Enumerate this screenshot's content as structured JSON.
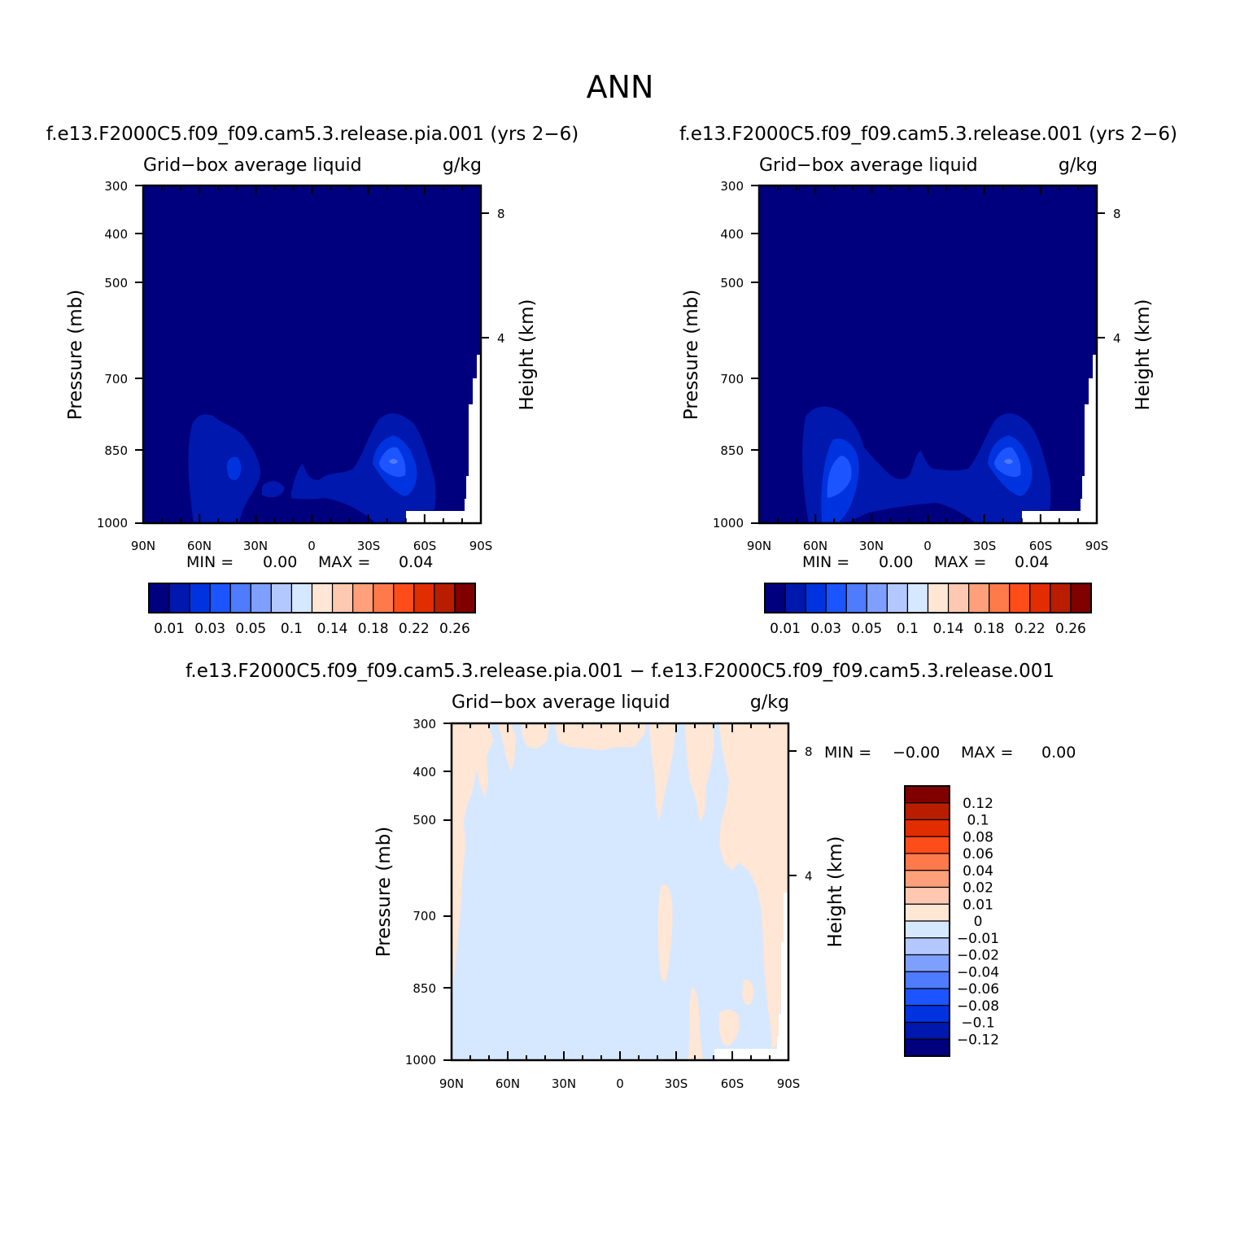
{
  "figure_title": "ANN",
  "chart_data": [
    {
      "type": "heatmap",
      "panel": "case",
      "title": "f.e13.F2000C5.f09_f09.cam5.3.release.pia.001 (yrs 2-6)",
      "field_label": "Grid-box average liquid",
      "units": "g/kg",
      "ylabel": "Pressure (mb)",
      "ylabel_right": "Height (km)",
      "x_ticks": [
        "90N",
        "60N",
        "30N",
        "0",
        "30S",
        "60S",
        "90S"
      ],
      "y_ticks": [
        "300",
        "400",
        "500",
        "700",
        "850",
        "1000"
      ],
      "y_right_ticks": [
        "8",
        "4"
      ],
      "ylim": [
        1000,
        300
      ],
      "min_label": "MIN =",
      "min_value": "0.00",
      "max_label": "MAX =",
      "max_value": "0.04",
      "colorbar_labels": [
        "0.01",
        "0.03",
        "0.05",
        "0.1",
        "0.14",
        "0.18",
        "0.22",
        "0.26"
      ],
      "colorbar_colors": [
        "#00007f",
        "#0018ad",
        "#0033e0",
        "#1c55ff",
        "#4f7bff",
        "#7f9fff",
        "#b3c8ff",
        "#d6e8ff",
        "#ffe6d5",
        "#ffc8b0",
        "#ffa07a",
        "#ff7a4a",
        "#ff4d1a",
        "#e22d00",
        "#b81d00",
        "#800000"
      ],
      "features": [
        {
          "where": "NH midlatitude low levels (~70N-25N, below ~780 mb)",
          "values": [
            0.01,
            0.02
          ]
        },
        {
          "where": "SH midlatitude low levels (~30S-60S, ~770-960 mb)",
          "values": [
            0.01,
            0.02,
            0.03,
            0.04
          ]
        },
        {
          "where": "elsewhere",
          "values": [
            0.0
          ]
        }
      ]
    },
    {
      "type": "heatmap",
      "panel": "control",
      "title": "f.e13.F2000C5.f09_f09.cam5.3.release.001 (yrs 2-6)",
      "field_label": "Grid-box average liquid",
      "units": "g/kg",
      "ylabel": "Pressure (mb)",
      "ylabel_right": "Height (km)",
      "x_ticks": [
        "90N",
        "60N",
        "30N",
        "0",
        "30S",
        "60S",
        "90S"
      ],
      "y_ticks": [
        "300",
        "400",
        "500",
        "700",
        "850",
        "1000"
      ],
      "y_right_ticks": [
        "8",
        "4"
      ],
      "ylim": [
        1000,
        300
      ],
      "min_label": "MIN =",
      "min_value": "0.00",
      "max_label": "MAX =",
      "max_value": "0.04",
      "colorbar_labels": [
        "0.01",
        "0.03",
        "0.05",
        "0.1",
        "0.14",
        "0.18",
        "0.22",
        "0.26"
      ],
      "colorbar_colors": [
        "#00007f",
        "#0018ad",
        "#0033e0",
        "#1c55ff",
        "#4f7bff",
        "#7f9fff",
        "#b3c8ff",
        "#d6e8ff",
        "#ffe6d5",
        "#ffc8b0",
        "#ffa07a",
        "#ff7a4a",
        "#ff4d1a",
        "#e22d00",
        "#b81d00",
        "#800000"
      ],
      "features": [
        {
          "where": "NH midlatitude low levels (~70N-25N, below ~770 mb)",
          "values": [
            0.01,
            0.02,
            0.03
          ]
        },
        {
          "where": "SH midlatitude low levels (~30S-60S, ~770-960 mb)",
          "values": [
            0.01,
            0.02,
            0.03,
            0.04
          ]
        },
        {
          "where": "elsewhere",
          "values": [
            0.0
          ]
        }
      ]
    },
    {
      "type": "heatmap",
      "panel": "difference",
      "title": "f.e13.F2000C5.f09_f09.cam5.3.release.pia.001 - f.e13.F2000C5.f09_f09.cam5.3.release.001",
      "field_label": "Grid-box average liquid",
      "units": "g/kg",
      "ylabel": "Pressure (mb)",
      "ylabel_right": "Height (km)",
      "x_ticks": [
        "90N",
        "60N",
        "30N",
        "0",
        "30S",
        "60S",
        "90S"
      ],
      "y_ticks": [
        "300",
        "400",
        "500",
        "700",
        "850",
        "1000"
      ],
      "y_right_ticks": [
        "8",
        "4"
      ],
      "ylim": [
        1000,
        300
      ],
      "min_label": "MIN =",
      "min_value": "-0.00",
      "max_label": "MAX =",
      "max_value": "0.00",
      "colorbar_labels": [
        "0.12",
        "0.1",
        "0.08",
        "0.06",
        "0.04",
        "0.02",
        "0.01",
        "0",
        "-0.01",
        "-0.02",
        "-0.04",
        "-0.06",
        "-0.08",
        "-0.1",
        "-0.12"
      ],
      "colorbar_colors": [
        "#800000",
        "#b81d00",
        "#e22d00",
        "#ff4d1a",
        "#ff7a4a",
        "#ffa07a",
        "#ffc8b0",
        "#ffe6d5",
        "#d6e8ff",
        "#b3c8ff",
        "#7f9fff",
        "#4f7bff",
        "#1c55ff",
        "#0033e0",
        "#0018ad",
        "#00007f"
      ],
      "features": [
        {
          "where": "most of domain",
          "range": [
            -0.01,
            0
          ]
        },
        {
          "where": "scattered patches near 90N upper levels, 25S-90S",
          "range": [
            0,
            0.01
          ]
        }
      ]
    }
  ]
}
